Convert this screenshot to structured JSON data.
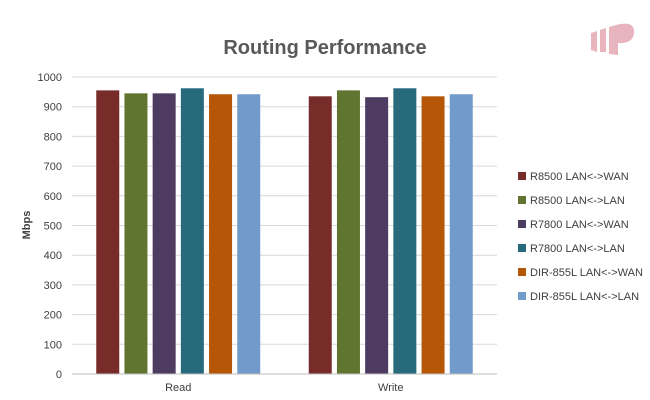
{
  "chart_data": {
    "type": "bar",
    "title": "Routing Performance",
    "ylabel": "Mbps",
    "xlabel": "",
    "ylim": [
      0,
      1000
    ],
    "yticks": [
      0,
      100,
      200,
      300,
      400,
      500,
      600,
      700,
      800,
      900,
      1000
    ],
    "categories": [
      "Read",
      "Write"
    ],
    "grid": true,
    "legend_position": "right",
    "series": [
      {
        "name": "R8500 LAN<->WAN",
        "color": "#772C2A",
        "values": [
          955,
          935
        ]
      },
      {
        "name": "R8500 LAN<->LAN",
        "color": "#5F7530",
        "values": [
          945,
          955
        ]
      },
      {
        "name": "R7800 LAN<->WAN",
        "color": "#4D3B62",
        "values": [
          945,
          932
        ]
      },
      {
        "name": "R7800 LAN<->LAN",
        "color": "#276A7C",
        "values": [
          962,
          962
        ]
      },
      {
        "name": "DIR-855L LAN<->WAN",
        "color": "#B65708",
        "values": [
          942,
          935
        ]
      },
      {
        "name": "DIR-855L LAN<->LAN",
        "color": "#729ACA",
        "values": [
          942,
          942
        ]
      }
    ]
  },
  "logo": {
    "name": "brand-logo",
    "color": "#E8B4BE"
  }
}
